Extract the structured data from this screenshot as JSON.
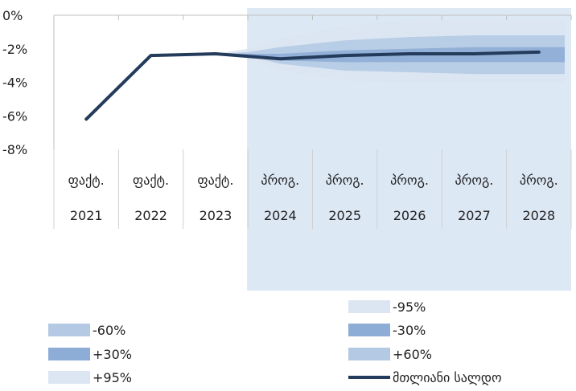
{
  "chart_data": {
    "type": "line",
    "title": "",
    "xlabel": "",
    "ylabel": "",
    "ylim": [
      -8,
      0
    ],
    "yticks": [
      "0%",
      "-2%",
      "-4%",
      "-6%",
      "-8%"
    ],
    "categories": [
      {
        "top": "ფაქტ.",
        "bottom": "2021"
      },
      {
        "top": "ფაქტ.",
        "bottom": "2022"
      },
      {
        "top": "ფაქტ.",
        "bottom": "2023"
      },
      {
        "top": "პროგ.",
        "bottom": "2024"
      },
      {
        "top": "პროგ.",
        "bottom": "2025"
      },
      {
        "top": "პროგ.",
        "bottom": "2026"
      },
      {
        "top": "პროგ.",
        "bottom": "2027"
      },
      {
        "top": "პროგ.",
        "bottom": "2028"
      }
    ],
    "forecast_start_index": 3,
    "series": [
      {
        "name": "მთლიანი სალდო",
        "values": [
          -6.2,
          -2.4,
          -2.3,
          -2.6,
          -2.4,
          -2.3,
          -2.3,
          -2.2
        ],
        "color": "#243b5c"
      }
    ],
    "fan": {
      "x": [
        2.0,
        2.5,
        3.0,
        4.0,
        5.0,
        6.0,
        7.0,
        7.4
      ],
      "bands": [
        {
          "name": "-95%",
          "lower": [
            -2.3,
            -2.5,
            -3.3,
            -3.9,
            -4.0,
            -4.0,
            -4.0,
            -4.0
          ],
          "upper": [
            -2.3,
            -2.0,
            -1.4,
            -0.6,
            -0.3,
            -0.3,
            -0.3,
            -0.3
          ],
          "color": "#dce6f2"
        },
        {
          "name": "-60%",
          "lower": [
            -2.3,
            -2.4,
            -2.9,
            -3.3,
            -3.4,
            -3.5,
            -3.5,
            -3.5
          ],
          "upper": [
            -2.3,
            -2.2,
            -1.9,
            -1.5,
            -1.3,
            -1.2,
            -1.2,
            -1.2
          ],
          "color": "#b4cae4"
        },
        {
          "name": "-30%",
          "lower": [
            -2.3,
            -2.4,
            -2.7,
            -2.8,
            -2.8,
            -2.8,
            -2.8,
            -2.8
          ],
          "upper": [
            -2.3,
            -2.3,
            -2.3,
            -2.1,
            -2.0,
            -1.9,
            -1.9,
            -1.9
          ],
          "color": "#8eadd6"
        }
      ]
    },
    "shade_color": "#dde8f5"
  },
  "legend": {
    "items": [
      {
        "label": "-95%",
        "color": "#dce6f2",
        "kind": "box"
      },
      {
        "label": "-60%",
        "color": "#b4cae4",
        "kind": "box"
      },
      {
        "label": "-30%",
        "color": "#8eadd6",
        "kind": "box"
      },
      {
        "label": "+30%",
        "color": "#8eadd6",
        "kind": "box"
      },
      {
        "label": "+60%",
        "color": "#b4cae4",
        "kind": "box"
      },
      {
        "label": "+95%",
        "color": "#dce6f2",
        "kind": "box"
      },
      {
        "label": "მთლიანი სალდო",
        "color": "#243b5c",
        "kind": "line"
      }
    ]
  }
}
